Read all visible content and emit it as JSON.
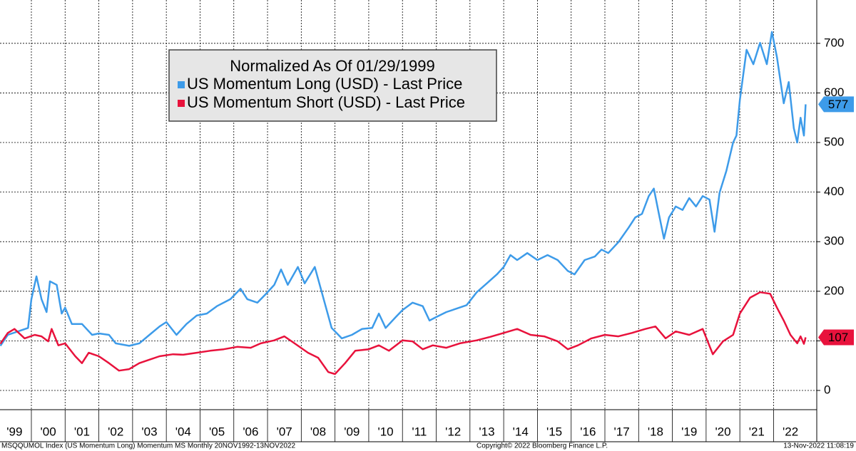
{
  "chart_data": {
    "type": "line",
    "legend_title": "Normalized As Of 01/29/1999",
    "series": [
      {
        "name": "US Momentum Long (USD) - Last Price",
        "color": "#3d9be9",
        "x": [
          1999.08,
          1999.3,
          1999.6,
          1999.9,
          2000.0,
          2000.15,
          2000.3,
          2000.45,
          2000.55,
          2000.75,
          2000.9,
          2001.0,
          2001.2,
          2001.5,
          2001.8,
          2002.0,
          2002.3,
          2002.5,
          2002.9,
          2003.2,
          2003.5,
          2003.8,
          2004.0,
          2004.3,
          2004.6,
          2004.9,
          2005.2,
          2005.5,
          2005.9,
          2006.2,
          2006.4,
          2006.7,
          2007.0,
          2007.2,
          2007.4,
          2007.6,
          2007.9,
          2008.1,
          2008.4,
          2008.6,
          2008.9,
          2009.2,
          2009.5,
          2009.8,
          2010.1,
          2010.3,
          2010.5,
          2010.8,
          2011.0,
          2011.3,
          2011.6,
          2011.8,
          2012.0,
          2012.3,
          2012.6,
          2012.9,
          2013.2,
          2013.5,
          2013.8,
          2014.0,
          2014.2,
          2014.4,
          2014.7,
          2015.0,
          2015.3,
          2015.6,
          2015.9,
          2016.1,
          2016.4,
          2016.7,
          2016.9,
          2017.1,
          2017.4,
          2017.7,
          2017.9,
          2018.1,
          2018.3,
          2018.45,
          2018.6,
          2018.75,
          2018.9,
          2019.1,
          2019.3,
          2019.5,
          2019.7,
          2019.9,
          2020.1,
          2020.25,
          2020.4,
          2020.6,
          2020.8,
          2020.9,
          2021.0,
          2021.2,
          2021.4,
          2021.6,
          2021.8,
          2021.95,
          2022.1,
          2022.3,
          2022.45,
          2022.6,
          2022.7,
          2022.8,
          2022.9,
          2022.95
        ],
        "values": [
          90,
          112,
          119,
          126,
          184,
          230,
          184,
          158,
          220,
          213,
          155,
          167,
          134,
          134,
          112,
          115,
          112,
          95,
          90,
          95,
          112,
          129,
          138,
          112,
          134,
          151,
          155,
          170,
          184,
          205,
          184,
          177,
          198,
          213,
          244,
          213,
          249,
          216,
          249,
          200,
          126,
          105,
          112,
          124,
          126,
          155,
          126,
          148,
          162,
          177,
          170,
          141,
          148,
          158,
          165,
          172,
          198,
          216,
          234,
          249,
          273,
          263,
          277,
          263,
          273,
          263,
          241,
          234,
          263,
          270,
          284,
          277,
          299,
          328,
          349,
          356,
          392,
          407,
          356,
          306,
          349,
          371,
          364,
          388,
          371,
          392,
          385,
          320,
          399,
          443,
          500,
          514,
          586,
          687,
          658,
          701,
          658,
          723,
          672,
          579,
          622,
          529,
          500,
          550,
          514,
          577
        ]
      },
      {
        "name": "US Momentum Short (USD) - Last Price",
        "color": "#e8123c",
        "x": [
          1999.08,
          1999.3,
          1999.5,
          1999.8,
          2000.1,
          2000.3,
          2000.5,
          2000.6,
          2000.8,
          2001.0,
          2001.3,
          2001.5,
          2001.7,
          2002.0,
          2002.3,
          2002.6,
          2002.9,
          2003.2,
          2003.5,
          2003.8,
          2004.2,
          2004.5,
          2004.9,
          2005.3,
          2005.7,
          2006.1,
          2006.5,
          2006.8,
          2007.2,
          2007.5,
          2007.8,
          2008.2,
          2008.5,
          2008.8,
          2009.0,
          2009.3,
          2009.6,
          2010.0,
          2010.3,
          2010.6,
          2011.0,
          2011.3,
          2011.6,
          2011.9,
          2012.3,
          2012.7,
          2013.2,
          2013.6,
          2014.0,
          2014.4,
          2014.8,
          2015.2,
          2015.6,
          2015.9,
          2016.2,
          2016.6,
          2017.0,
          2017.4,
          2017.8,
          2018.2,
          2018.5,
          2018.8,
          2019.1,
          2019.5,
          2019.9,
          2020.2,
          2020.5,
          2020.8,
          2021.0,
          2021.3,
          2021.6,
          2021.9,
          2022.1,
          2022.3,
          2022.5,
          2022.7,
          2022.8,
          2022.9,
          2022.95
        ],
        "values": [
          94,
          116,
          124,
          105,
          112,
          109,
          99,
          124,
          91,
          95,
          69,
          55,
          76,
          69,
          55,
          40,
          43,
          55,
          62,
          69,
          73,
          72,
          76,
          80,
          83,
          88,
          86,
          95,
          101,
          109,
          95,
          76,
          66,
          37,
          33,
          55,
          80,
          83,
          91,
          80,
          101,
          99,
          83,
          91,
          86,
          95,
          101,
          108,
          116,
          124,
          112,
          109,
          99,
          83,
          91,
          105,
          112,
          109,
          116,
          124,
          129,
          105,
          119,
          112,
          124,
          73,
          99,
          112,
          155,
          187,
          198,
          195,
          167,
          141,
          112,
          95,
          109,
          94,
          107
        ]
      }
    ],
    "xlim": [
      1999.07,
      2023.28
    ],
    "xticks": [
      {
        "value": 1999,
        "label": "'99"
      },
      {
        "value": 2000,
        "label": "'00"
      },
      {
        "value": 2001,
        "label": "'01"
      },
      {
        "value": 2002,
        "label": "'02"
      },
      {
        "value": 2003,
        "label": "'03"
      },
      {
        "value": 2004,
        "label": "'04"
      },
      {
        "value": 2005,
        "label": "'05"
      },
      {
        "value": 2006,
        "label": "'06"
      },
      {
        "value": 2007,
        "label": "'07"
      },
      {
        "value": 2008,
        "label": "'08"
      },
      {
        "value": 2009,
        "label": "'09"
      },
      {
        "value": 2010,
        "label": "'10"
      },
      {
        "value": 2011,
        "label": "'11"
      },
      {
        "value": 2012,
        "label": "'12"
      },
      {
        "value": 2013,
        "label": "'13"
      },
      {
        "value": 2014,
        "label": "'14"
      },
      {
        "value": 2015,
        "label": "'15"
      },
      {
        "value": 2016,
        "label": "'16"
      },
      {
        "value": 2017,
        "label": "'17"
      },
      {
        "value": 2018,
        "label": "'18"
      },
      {
        "value": 2019,
        "label": "'19"
      },
      {
        "value": 2020,
        "label": "'20"
      },
      {
        "value": 2021,
        "label": "'21"
      },
      {
        "value": 2022,
        "label": "'22"
      }
    ],
    "ylim": [
      -38.8,
      787.4
    ],
    "yticks": [
      0,
      100,
      200,
      300,
      400,
      500,
      600,
      700
    ],
    "grid": true,
    "footer_left": "MSQQUMOL Index (US Momentum Long) Momentum MS  Monthly 20NOV1992-13NOV2022",
    "footer_center": "Copyright© 2022 Bloomberg Finance L.P.",
    "footer_right": "13-Nov-2022 11:08:19"
  }
}
